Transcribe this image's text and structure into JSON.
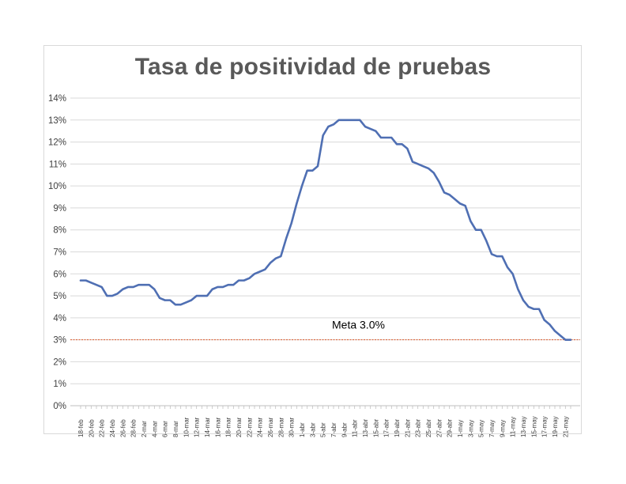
{
  "chart_data": {
    "type": "line",
    "title": "Tasa de positividad de pruebas",
    "xlabel": "",
    "ylabel": "",
    "ylim": [
      0,
      14
    ],
    "y_ticks": [
      "0%",
      "1%",
      "2%",
      "3%",
      "4%",
      "5%",
      "6%",
      "7%",
      "8%",
      "9%",
      "10%",
      "11%",
      "12%",
      "13%",
      "14%"
    ],
    "x_tick_labels": [
      "18-feb",
      "20-feb",
      "22-feb",
      "24-feb",
      "26-feb",
      "28-feb",
      "2-mar",
      "4-mar",
      "6-mar",
      "8-mar",
      "10-mar",
      "12-mar",
      "14-mar",
      "16-mar",
      "18-mar",
      "20-mar",
      "22-mar",
      "24-mar",
      "26-mar",
      "28-mar",
      "30-mar",
      "1-abr",
      "3-abr",
      "5-abr",
      "7-abr",
      "9-abr",
      "11-abr",
      "13-abr",
      "15-abr",
      "17-abr",
      "19-abr",
      "21-abr",
      "23-abr",
      "25-abr",
      "27-abr",
      "29-abr",
      "1-may",
      "3-may",
      "5-may",
      "7-may",
      "9-may",
      "11-may",
      "13-may",
      "15-may",
      "17-may",
      "19-may",
      "21-may"
    ],
    "grid": true,
    "series": [
      {
        "color": "#4f6fb3",
        "x": [
          "18-feb",
          "19-feb",
          "20-feb",
          "21-feb",
          "22-feb",
          "23-feb",
          "24-feb",
          "25-feb",
          "26-feb",
          "27-feb",
          "28-feb",
          "1-mar",
          "2-mar",
          "3-mar",
          "4-mar",
          "5-mar",
          "6-mar",
          "7-mar",
          "8-mar",
          "9-mar",
          "10-mar",
          "11-mar",
          "12-mar",
          "13-mar",
          "14-mar",
          "15-mar",
          "16-mar",
          "17-mar",
          "18-mar",
          "19-mar",
          "20-mar",
          "21-mar",
          "22-mar",
          "23-mar",
          "24-mar",
          "25-mar",
          "26-mar",
          "27-mar",
          "28-mar",
          "29-mar",
          "30-mar",
          "31-mar",
          "1-abr",
          "2-abr",
          "3-abr",
          "4-abr",
          "5-abr",
          "6-abr",
          "7-abr",
          "8-abr",
          "9-abr",
          "10-abr",
          "11-abr",
          "12-abr",
          "13-abr",
          "14-abr",
          "15-abr",
          "16-abr",
          "17-abr",
          "18-abr",
          "19-abr",
          "20-abr",
          "21-abr",
          "22-abr",
          "23-abr",
          "24-abr",
          "25-abr",
          "26-abr",
          "27-abr",
          "28-abr",
          "29-abr",
          "30-abr",
          "1-may",
          "2-may",
          "3-may",
          "4-may",
          "5-may",
          "6-may",
          "7-may",
          "8-may",
          "9-may",
          "10-may",
          "11-may",
          "12-may",
          "13-may",
          "14-may",
          "15-may",
          "16-may",
          "17-may",
          "18-may",
          "19-may",
          "20-may",
          "21-may",
          "22-may"
        ],
        "values": [
          5.7,
          5.7,
          5.6,
          5.5,
          5.4,
          5.0,
          5.0,
          5.1,
          5.3,
          5.4,
          5.4,
          5.5,
          5.5,
          5.5,
          5.3,
          4.9,
          4.8,
          4.8,
          4.6,
          4.6,
          4.7,
          4.8,
          5.0,
          5.0,
          5.0,
          5.3,
          5.4,
          5.4,
          5.5,
          5.5,
          5.7,
          5.7,
          5.8,
          6.0,
          6.1,
          6.2,
          6.5,
          6.7,
          6.8,
          7.6,
          8.3,
          9.2,
          10.0,
          10.7,
          10.7,
          10.9,
          12.3,
          12.7,
          12.8,
          13.0,
          13.0,
          13.0,
          13.0,
          13.0,
          12.7,
          12.6,
          12.5,
          12.2,
          12.2,
          12.2,
          11.9,
          11.9,
          11.7,
          11.1,
          11.0,
          10.9,
          10.8,
          10.6,
          10.2,
          9.7,
          9.6,
          9.4,
          9.2,
          9.1,
          8.4,
          8.0,
          8.0,
          7.5,
          6.9,
          6.8,
          6.8,
          6.3,
          6.0,
          5.3,
          4.8,
          4.5,
          4.4,
          4.4,
          3.9,
          3.7,
          3.4,
          3.2,
          3.0,
          3.0
        ]
      }
    ],
    "reference_line": {
      "value": 3.0,
      "label": "Meta 3.0%",
      "color": "#e0592a"
    }
  }
}
